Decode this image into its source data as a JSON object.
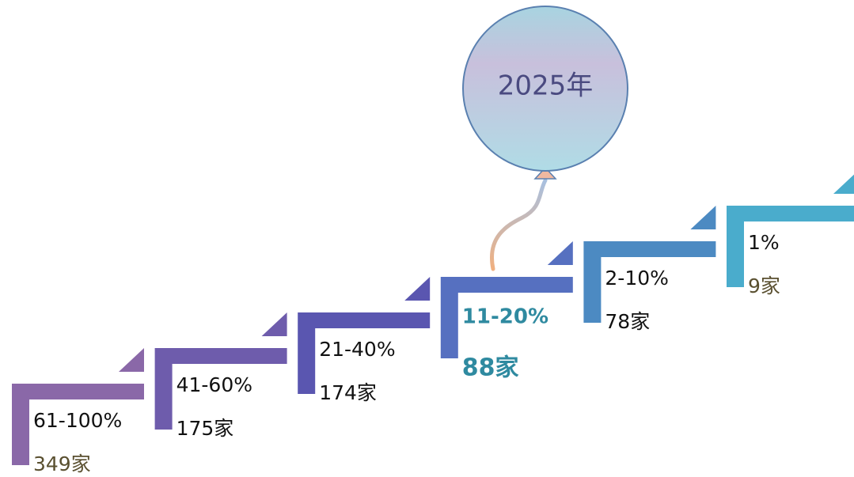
{
  "balloon": {
    "label": "2025年"
  },
  "steps": [
    {
      "range": "61-100%",
      "count": "349家"
    },
    {
      "range": "41-60%",
      "count": "175家"
    },
    {
      "range": "21-40%",
      "count": "174家"
    },
    {
      "range": "11-20%",
      "count": "88家"
    },
    {
      "range": "2-10%",
      "count": "78家"
    },
    {
      "range": "1%",
      "count": "9家"
    }
  ]
}
